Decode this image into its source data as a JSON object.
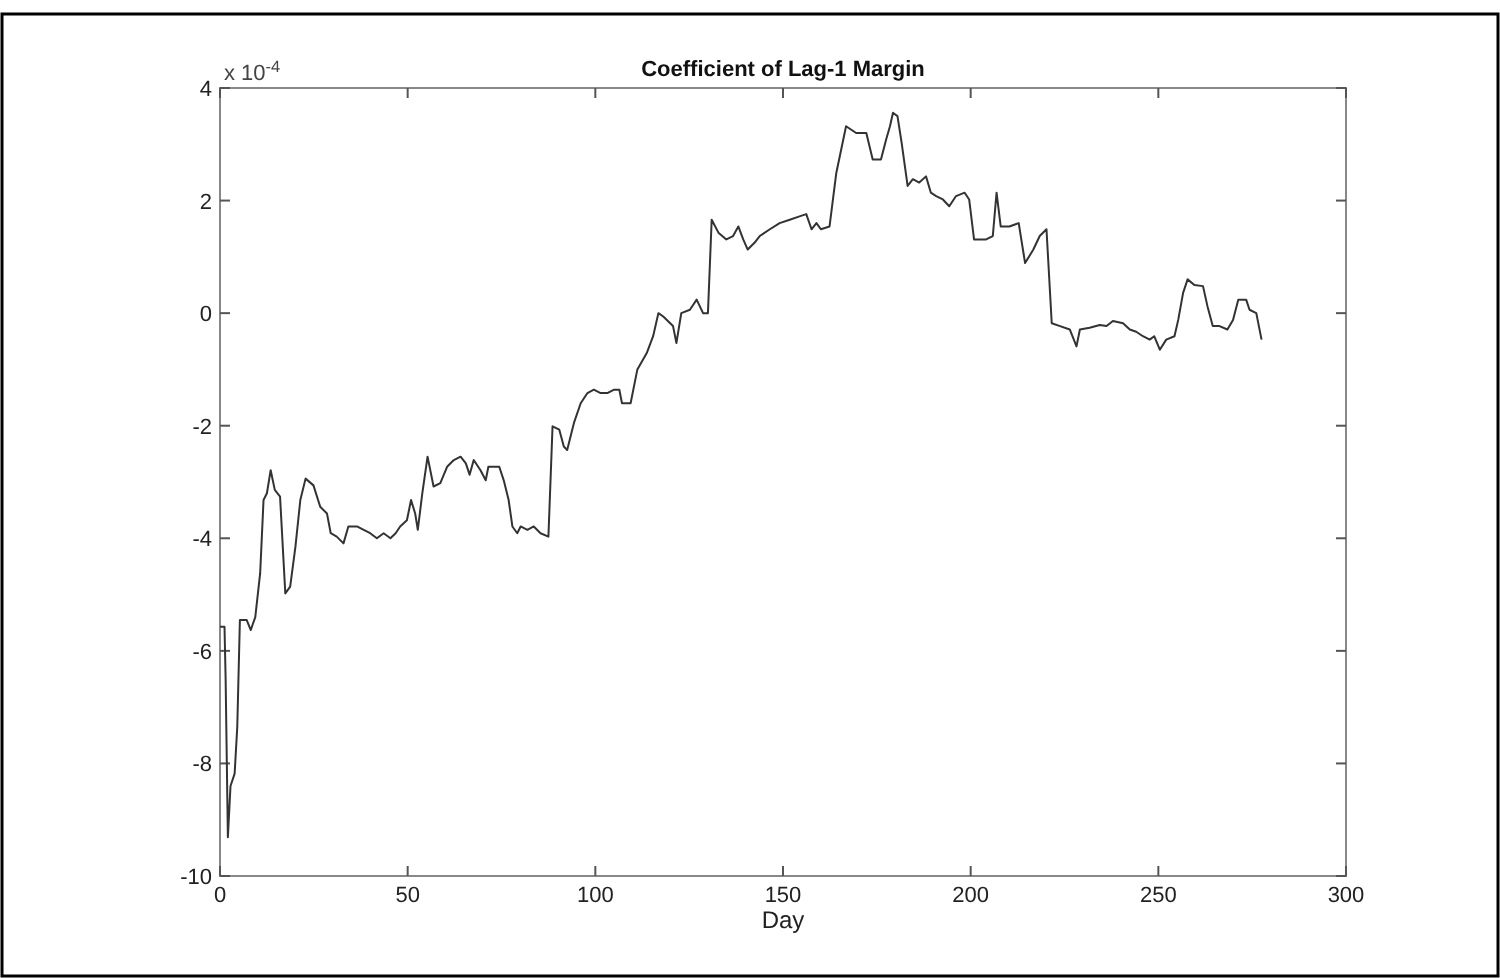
{
  "chart_data": {
    "type": "line",
    "title": "Coefficient of Lag-1 Margin",
    "xlabel": "Day",
    "annotations": [
      "x 10$^{-4}$"
    ],
    "xlim": [
      0,
      300
    ],
    "xticks": [
      0,
      50,
      100,
      150,
      200,
      250,
      300
    ],
    "ylim": [
      -10,
      4
    ],
    "yticks": [
      -10,
      -8,
      -6,
      -4,
      -2,
      0,
      2,
      4
    ],
    "grid": false,
    "marker": "none",
    "line_style": "solid",
    "series": [
      {
        "color": "#333333",
        "x": [
          0,
          1.2,
          1.5,
          2.1,
          2.8,
          3.9,
          4.6,
          5.3,
          7.1,
          8.2,
          9.4,
          10.7,
          11.6,
          12.5,
          13.5,
          14.6,
          16,
          17.4,
          18.7,
          20.1,
          21.4,
          22.8,
          24.9,
          26.7,
          28.5,
          29.5,
          31.1,
          32.9,
          34.2,
          36.5,
          38.3,
          40,
          41.8,
          43.6,
          45.4,
          46.8,
          48,
          49.8,
          50.9,
          52,
          52.7,
          53.9,
          55.3,
          56.9,
          58.7,
          60.5,
          62.3,
          64.1,
          65.5,
          66.5,
          67.6,
          69.4,
          70.8,
          71.5,
          74.4,
          75.6,
          76.9,
          77.9,
          79.2,
          80.1,
          81.9,
          83.6,
          85.4,
          87.5,
          88.6,
          90.4,
          91.6,
          92.5,
          94.3,
          96.1,
          97.9,
          99.6,
          101.4,
          103.2,
          105,
          106.4,
          107.1,
          109.4,
          111.2,
          113.7,
          115.4,
          116.8,
          118.1,
          120.7,
          121.6,
          122.9,
          125.2,
          127,
          128.7,
          130,
          131,
          132.8,
          134.9,
          136.7,
          138.1,
          139.4,
          140.6,
          142.4,
          143.8,
          146.5,
          149.1,
          151.8,
          154.4,
          156.2,
          157.6,
          158.9,
          160.1,
          162.4,
          164.2,
          166.8,
          169.5,
          172.2,
          173.9,
          176.1,
          177.5,
          178.5,
          179.3,
          180.5,
          181.6,
          183.2,
          184.6,
          186.3,
          188.1,
          189.4,
          190.8,
          192.6,
          194.3,
          196.1,
          198.4,
          199.6,
          200.9,
          204.1,
          205.9,
          206.9,
          208,
          210.3,
          212.8,
          214.5,
          216.7,
          218.4,
          220.2,
          221.6,
          223.8,
          226.4,
          228.2,
          229.1,
          231.7,
          234.4,
          236.2,
          237.9,
          240.6,
          242.4,
          244.1,
          245.9,
          247.7,
          248.9,
          250.4,
          252.1,
          254.3,
          255.3,
          256.6,
          257.8,
          259.6,
          261.9,
          263.1,
          264.5,
          266.3,
          268.4,
          269.9,
          271.3,
          273.4,
          274.3,
          276.1,
          277.5
        ],
        "values": [
          -5.57,
          -5.57,
          -6.5,
          -9.31,
          -8.4,
          -8.18,
          -7.35,
          -5.45,
          -5.45,
          -5.63,
          -5.4,
          -4.62,
          -3.32,
          -3.2,
          -2.79,
          -3.14,
          -3.26,
          -4.98,
          -4.86,
          -4.15,
          -3.32,
          -2.94,
          -3.06,
          -3.44,
          -3.56,
          -3.91,
          -3.97,
          -4.09,
          -3.79,
          -3.79,
          -3.85,
          -3.91,
          -4.0,
          -3.91,
          -4.0,
          -3.91,
          -3.79,
          -3.68,
          -3.32,
          -3.56,
          -3.85,
          -3.2,
          -2.55,
          -3.08,
          -3.02,
          -2.73,
          -2.61,
          -2.55,
          -2.67,
          -2.87,
          -2.61,
          -2.79,
          -2.97,
          -2.73,
          -2.73,
          -2.97,
          -3.32,
          -3.79,
          -3.91,
          -3.79,
          -3.85,
          -3.79,
          -3.91,
          -3.97,
          -2.01,
          -2.07,
          -2.37,
          -2.43,
          -1.95,
          -1.6,
          -1.42,
          -1.36,
          -1.42,
          -1.42,
          -1.36,
          -1.36,
          -1.6,
          -1.6,
          -1.0,
          -0.71,
          -0.41,
          0.0,
          -0.06,
          -0.23,
          -0.53,
          0.0,
          0.06,
          0.24,
          0.0,
          0.0,
          1.66,
          1.43,
          1.31,
          1.37,
          1.54,
          1.31,
          1.13,
          1.25,
          1.37,
          1.49,
          1.6,
          1.66,
          1.72,
          1.76,
          1.49,
          1.6,
          1.49,
          1.54,
          2.49,
          3.32,
          3.2,
          3.2,
          2.73,
          2.73,
          3.09,
          3.32,
          3.56,
          3.5,
          3.03,
          2.26,
          2.38,
          2.32,
          2.43,
          2.14,
          2.08,
          2.02,
          1.9,
          2.08,
          2.14,
          2.02,
          1.31,
          1.31,
          1.37,
          2.14,
          1.54,
          1.54,
          1.6,
          0.89,
          1.13,
          1.37,
          1.49,
          -0.18,
          -0.23,
          -0.29,
          -0.59,
          -0.29,
          -0.26,
          -0.21,
          -0.23,
          -0.14,
          -0.18,
          -0.29,
          -0.33,
          -0.41,
          -0.47,
          -0.41,
          -0.65,
          -0.47,
          -0.41,
          -0.12,
          0.36,
          0.6,
          0.5,
          0.48,
          0.12,
          -0.23,
          -0.23,
          -0.29,
          -0.12,
          0.24,
          0.24,
          0.06,
          0.0,
          -0.47
        ]
      }
    ]
  }
}
